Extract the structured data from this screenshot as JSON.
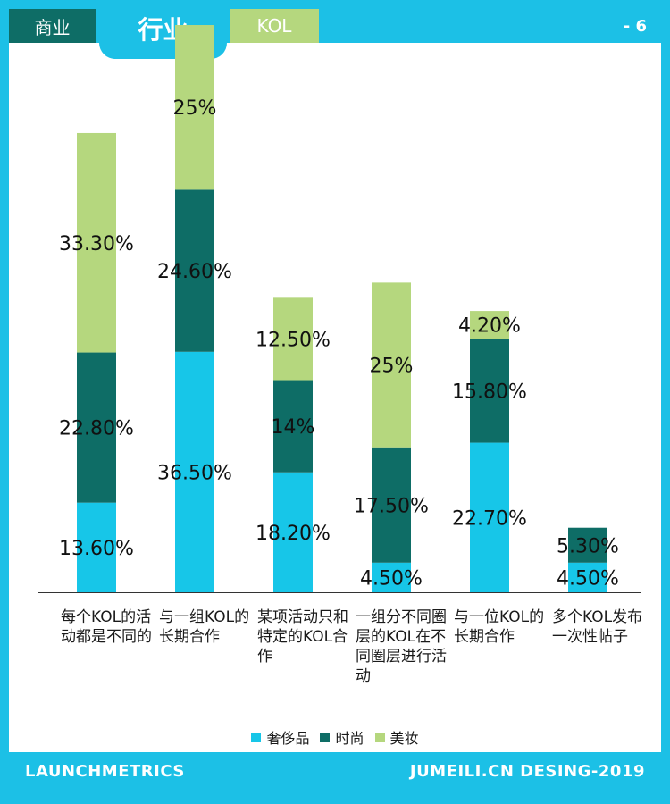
{
  "tabs": {
    "business": "商业",
    "industry": "行业",
    "kol": "KOL"
  },
  "page_number": "- 6",
  "footer": {
    "left": "LAUNCHMETRICS",
    "right": "JUMEILI.CN DESING-2019"
  },
  "colors": {
    "background": "#1cc0e6",
    "luxury": "#17c6e8",
    "fashion": "#0e6d66",
    "beauty": "#b5d77e"
  },
  "chart_data": {
    "type": "bar",
    "stacked": true,
    "categories": [
      "每个KOL的活动都是不同的",
      "与一组KOL的长期合作",
      "某项活动只和特定的KOL合作",
      "一组分不同圈层的KOL在不同圈层进行活动",
      "与一位KOL的长期合作",
      "多个KOL发布一次性帖子"
    ],
    "series": [
      {
        "name": "奢侈品",
        "values": [
          13.6,
          36.5,
          18.2,
          4.5,
          22.7,
          4.5
        ],
        "labels": [
          "13.60%",
          "36.50%",
          "18.20%",
          "4.50%",
          "22.70%",
          "4.50%"
        ]
      },
      {
        "name": "时尚",
        "values": [
          22.8,
          24.6,
          14,
          17.5,
          15.8,
          5.3
        ],
        "labels": [
          "22.80%",
          "24.60%",
          "14%",
          "17.50%",
          "15.80%",
          "5.30%"
        ]
      },
      {
        "name": "美妆",
        "values": [
          33.3,
          25,
          12.5,
          25,
          4.2,
          0
        ],
        "labels": [
          "33.30%",
          "25%",
          "12.50%",
          "25%",
          "4.20%",
          ""
        ]
      }
    ],
    "legend_position": "bottom",
    "grid": false
  }
}
